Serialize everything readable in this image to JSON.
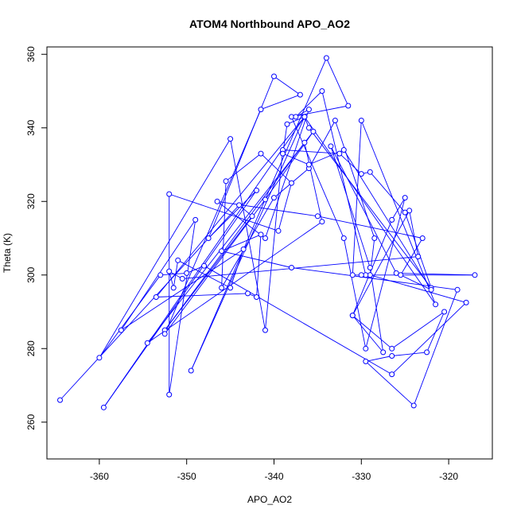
{
  "chart_data": {
    "type": "line",
    "title": "ATOM4 Northbound APO_AO2",
    "xlabel": "APO_AO2",
    "ylabel": "Theta (K)",
    "xlim": [
      -366,
      -315
    ],
    "ylim": [
      250,
      362
    ],
    "xticks": [
      -360,
      -350,
      -340,
      -330,
      -320
    ],
    "yticks": [
      260,
      280,
      300,
      320,
      340,
      360
    ],
    "grid": false,
    "legend": "none",
    "colors": {
      "series": "#0000ff",
      "axis": "#000000",
      "background": "#ffffff"
    },
    "markers": "open-circle",
    "series": [
      {
        "points": [
          [
            -364.5,
            266
          ],
          [
            -344,
            319
          ],
          [
            -342.5,
            316
          ],
          [
            -352.5,
            285
          ],
          [
            -336.5,
            336
          ],
          [
            -334.5,
            314.5
          ],
          [
            -354.5,
            281.5
          ],
          [
            -335.5,
            339
          ],
          [
            -341,
            320.5
          ],
          [
            -352.5,
            284
          ],
          [
            -341.5,
            345
          ],
          [
            -337,
            349
          ],
          [
            -340,
            354
          ],
          [
            -347.5,
            310
          ],
          [
            -342,
            323
          ],
          [
            -359.5,
            264
          ],
          [
            -336.5,
            343
          ],
          [
            -349.5,
            274
          ],
          [
            -334,
            359
          ],
          [
            -331.5,
            346
          ],
          [
            -338,
            343
          ],
          [
            -332,
            310
          ],
          [
            -329.5,
            280
          ],
          [
            -325,
            321
          ],
          [
            -326.5,
            315
          ],
          [
            -331,
            289
          ],
          [
            -326.5,
            280
          ],
          [
            -320.5,
            290
          ],
          [
            -322.5,
            279
          ],
          [
            -326.5,
            278
          ],
          [
            -329.5,
            276.5
          ],
          [
            -324,
            264.5
          ],
          [
            -319,
            296
          ],
          [
            -338,
            302
          ],
          [
            -346,
            306.5
          ],
          [
            -341.5,
            311
          ],
          [
            -342,
            294
          ],
          [
            -343,
            295
          ],
          [
            -353.5,
            294
          ],
          [
            -336.5,
            343
          ],
          [
            -321.5,
            292
          ],
          [
            -330,
            342
          ],
          [
            -331,
            300
          ],
          [
            -317,
            300
          ],
          [
            -326,
            300.5
          ],
          [
            -333.5,
            335
          ],
          [
            -329,
            302
          ],
          [
            -327.5,
            279
          ],
          [
            -331,
            289
          ],
          [
            -324.5,
            317.5
          ],
          [
            -323.5,
            305
          ],
          [
            -350.5,
            299
          ],
          [
            -352,
            301
          ],
          [
            -351.5,
            296.5
          ],
          [
            -351,
            304
          ],
          [
            -345,
            296.5
          ],
          [
            -343.5,
            307
          ],
          [
            -357.5,
            285
          ],
          [
            -349,
            315
          ],
          [
            -352,
            267.5
          ],
          [
            -352,
            322
          ],
          [
            -339.5,
            312
          ],
          [
            -338,
            325
          ],
          [
            -341.5,
            333
          ],
          [
            -345.5,
            325.5
          ],
          [
            -346,
            296.5
          ],
          [
            -340,
            321
          ],
          [
            -336,
            329
          ],
          [
            -333,
            342
          ],
          [
            -328.5,
            310
          ],
          [
            -329,
            300
          ],
          [
            -318,
            292.5
          ],
          [
            -326.5,
            273
          ],
          [
            -348,
            302.5
          ],
          [
            -350,
            300.5
          ],
          [
            -353,
            300
          ],
          [
            -360,
            277.5
          ],
          [
            -345,
            337
          ],
          [
            -341,
            285
          ],
          [
            -339,
            334
          ],
          [
            -332.5,
            333
          ],
          [
            -330,
            327.5
          ],
          [
            -329,
            328
          ],
          [
            -325,
            317
          ],
          [
            -322,
            296.5
          ],
          [
            -336,
            340
          ],
          [
            -336.5,
            343
          ],
          [
            -338.5,
            341
          ],
          [
            -339,
            333
          ],
          [
            -336,
            330
          ],
          [
            -332,
            334
          ],
          [
            -322,
            296
          ],
          [
            -325.5,
            300
          ],
          [
            -323,
            310
          ],
          [
            -335,
            316
          ],
          [
            -346.5,
            320
          ],
          [
            -341,
            310
          ],
          [
            -336,
            345
          ],
          [
            -337.5,
            343
          ],
          [
            -334.5,
            350
          ],
          [
            -329.5,
            300
          ],
          [
            -330,
            300
          ]
        ]
      }
    ]
  }
}
